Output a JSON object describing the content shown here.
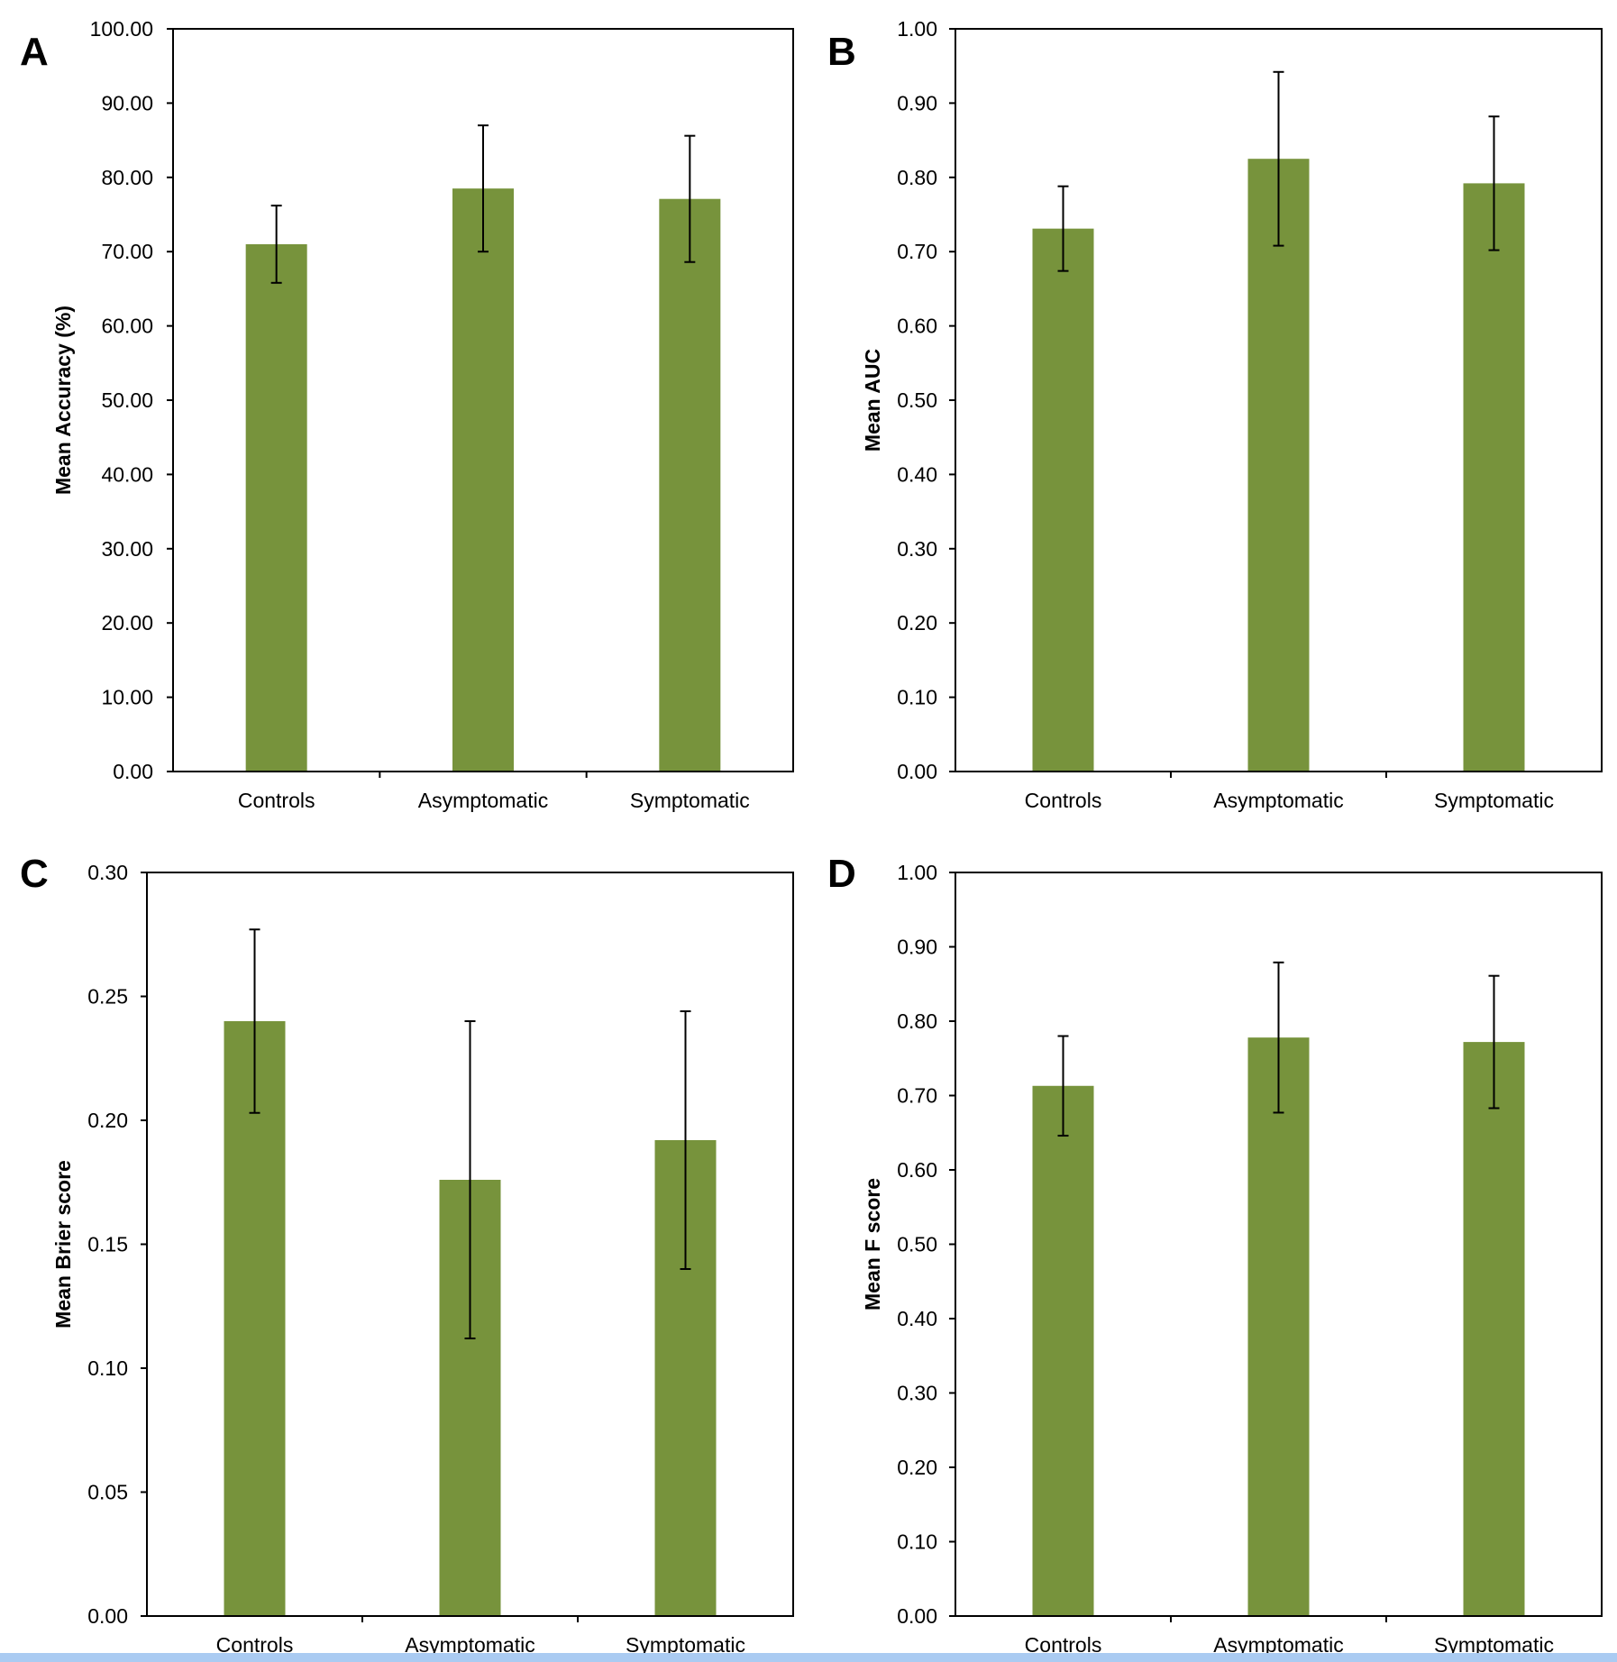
{
  "colors": {
    "bar": "#77933c",
    "axis": "#000000",
    "text": "#000000",
    "bottom_band": "#aacbf2"
  },
  "chart_data": [
    {
      "type": "bar",
      "panel_label": "A",
      "title": "",
      "xlabel": "",
      "ylabel": "Mean Accuracy (%)",
      "categories": [
        "Controls",
        "Asymptomatic",
        "Symptomatic"
      ],
      "values": [
        71.0,
        78.5,
        77.1
      ],
      "error": [
        5.2,
        8.5,
        8.5
      ],
      "ylim": [
        0,
        100
      ],
      "yticks": [
        0,
        10,
        20,
        30,
        40,
        50,
        60,
        70,
        80,
        90,
        100
      ],
      "ytick_labels": [
        "0.00",
        "10.00",
        "20.00",
        "30.00",
        "40.00",
        "50.00",
        "60.00",
        "70.00",
        "80.00",
        "90.00",
        "100.00"
      ],
      "grid": false,
      "legend": "none"
    },
    {
      "type": "bar",
      "panel_label": "B",
      "title": "",
      "xlabel": "",
      "ylabel": "Mean AUC",
      "categories": [
        "Controls",
        "Asymptomatic",
        "Symptomatic"
      ],
      "values": [
        0.731,
        0.825,
        0.792
      ],
      "error": [
        0.057,
        0.117,
        0.09
      ],
      "ylim": [
        0,
        1
      ],
      "yticks": [
        0,
        0.1,
        0.2,
        0.3,
        0.4,
        0.5,
        0.6,
        0.7,
        0.8,
        0.9,
        1.0
      ],
      "ytick_labels": [
        "0.00",
        "0.10",
        "0.20",
        "0.30",
        "0.40",
        "0.50",
        "0.60",
        "0.70",
        "0.80",
        "0.90",
        "1.00"
      ],
      "grid": false,
      "legend": "none"
    },
    {
      "type": "bar",
      "panel_label": "C",
      "title": "",
      "xlabel": "",
      "ylabel": "Mean Brier score",
      "categories": [
        "Controls",
        "Asymptomatic",
        "Symptomatic"
      ],
      "values": [
        0.24,
        0.176,
        0.192
      ],
      "error": [
        0.037,
        0.064,
        0.052
      ],
      "ylim": [
        0,
        0.3
      ],
      "yticks": [
        0,
        0.05,
        0.1,
        0.15,
        0.2,
        0.25,
        0.3
      ],
      "ytick_labels": [
        "0.00",
        "0.05",
        "0.10",
        "0.15",
        "0.20",
        "0.25",
        "0.30"
      ],
      "grid": false,
      "legend": "none"
    },
    {
      "type": "bar",
      "panel_label": "D",
      "title": "",
      "xlabel": "",
      "ylabel": "Mean F score",
      "categories": [
        "Controls",
        "Asymptomatic",
        "Symptomatic"
      ],
      "values": [
        0.713,
        0.778,
        0.772
      ],
      "error": [
        0.067,
        0.101,
        0.089
      ],
      "ylim": [
        0,
        1
      ],
      "yticks": [
        0,
        0.1,
        0.2,
        0.3,
        0.4,
        0.5,
        0.6,
        0.7,
        0.8,
        0.9,
        1.0
      ],
      "ytick_labels": [
        "0.00",
        "0.10",
        "0.20",
        "0.30",
        "0.40",
        "0.50",
        "0.60",
        "0.70",
        "0.80",
        "0.90",
        "1.00"
      ],
      "grid": false,
      "legend": "none"
    }
  ]
}
